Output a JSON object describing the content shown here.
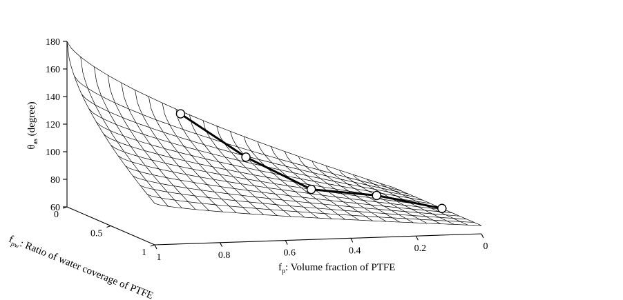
{
  "chart_data": {
    "type": "surface3d",
    "zlabel": {
      "main": "θ",
      "sub": "as",
      "rest": " (degree)"
    },
    "xlabel": {
      "main": "f",
      "sub": "p",
      "rest": ": Volume fraction of PTFE"
    },
    "ylabel": {
      "main": "f",
      "sub": "pw",
      "rest": ": Ratio of water coverage of PTFE"
    },
    "z_ticks": [
      "60",
      "80",
      "100",
      "120",
      "140",
      "160",
      "180"
    ],
    "x_ticks": [
      "1",
      "0.8",
      "0.6",
      "0.4",
      "0.2",
      "0"
    ],
    "y_ticks": [
      "0",
      "0.5",
      "1"
    ],
    "zlim": [
      60,
      180
    ],
    "xlim": [
      0,
      1
    ],
    "ylim": [
      0,
      1
    ],
    "surface_corners": {
      "fp1_fpw0": 180,
      "fp1_fpw1": 90,
      "fp0_fpw0": 66,
      "fp0_fpw1": 66
    },
    "points": [
      {
        "fp": 0.8,
        "z": 141
      },
      {
        "fp": 0.6,
        "z": 108
      },
      {
        "fp": 0.4,
        "z": 83
      },
      {
        "fp": 0.2,
        "z": 77
      },
      {
        "fp": 0.0,
        "z": 66
      }
    ]
  }
}
